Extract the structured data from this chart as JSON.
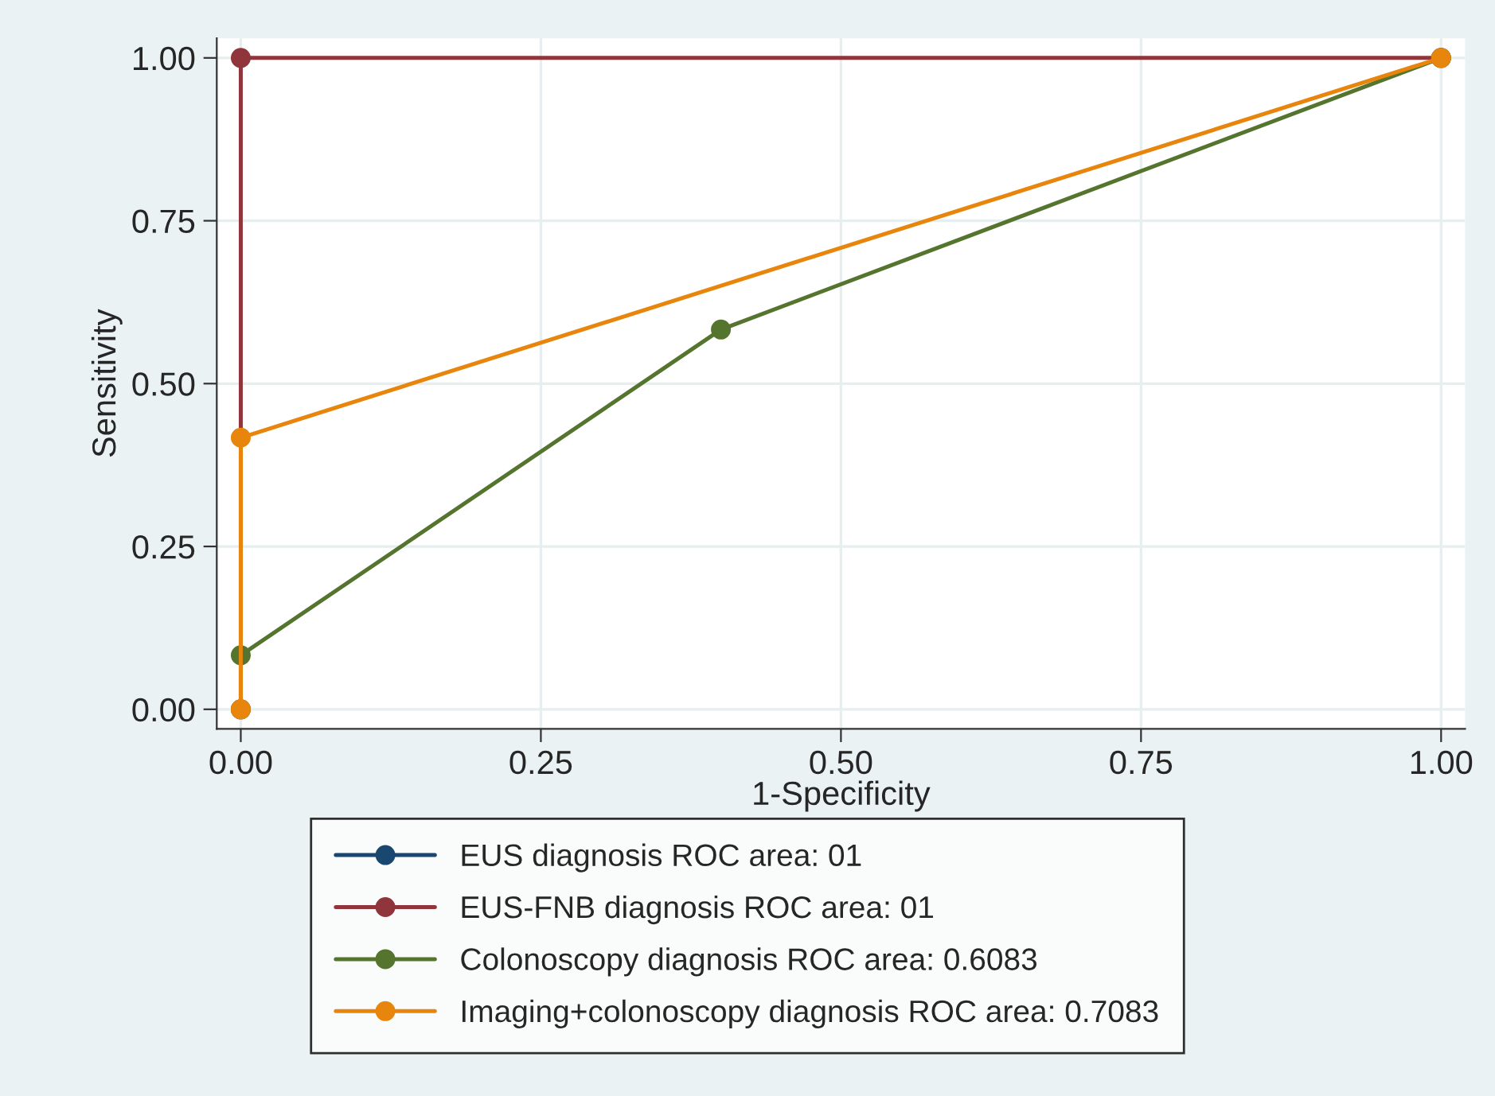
{
  "chart_data": {
    "type": "line",
    "xlabel": "1-Specificity",
    "ylabel": "Sensitivity",
    "xlim": [
      -0.02,
      1.02
    ],
    "ylim": [
      -0.03,
      1.03
    ],
    "xticks": [
      {
        "value": 0,
        "label": "0.00"
      },
      {
        "value": 0.25,
        "label": "0.25"
      },
      {
        "value": 0.5,
        "label": "0.50"
      },
      {
        "value": 0.75,
        "label": "0.75"
      },
      {
        "value": 1,
        "label": "1.00"
      }
    ],
    "yticks": [
      {
        "value": 0,
        "label": "0.00"
      },
      {
        "value": 0.25,
        "label": "0.25"
      },
      {
        "value": 0.5,
        "label": "0.50"
      },
      {
        "value": 0.75,
        "label": "0.75"
      },
      {
        "value": 1,
        "label": "1.00"
      }
    ],
    "grid": true,
    "legend": "bottom",
    "marker": "circle",
    "line_style": "solid",
    "series": [
      {
        "name": "EUS diagnosis ROC area: 01",
        "color": "#1a476f"
      },
      {
        "name": "EUS-FNB diagnosis ROC area: 01",
        "color": "#90353b",
        "x": [
          0,
          0,
          1
        ],
        "values": [
          0,
          1,
          1
        ]
      },
      {
        "name": "Colonoscopy diagnosis ROC area: 0.6083",
        "color": "#55752f",
        "x": [
          0,
          0,
          0.4,
          1
        ],
        "values": [
          0,
          0.083,
          0.583,
          1
        ]
      },
      {
        "name": "Imaging+colonoscopy diagnosis ROC area: 0.7083",
        "color": "#e8850c",
        "x": [
          0,
          0,
          1
        ],
        "values": [
          0,
          0.417,
          1
        ]
      }
    ]
  }
}
